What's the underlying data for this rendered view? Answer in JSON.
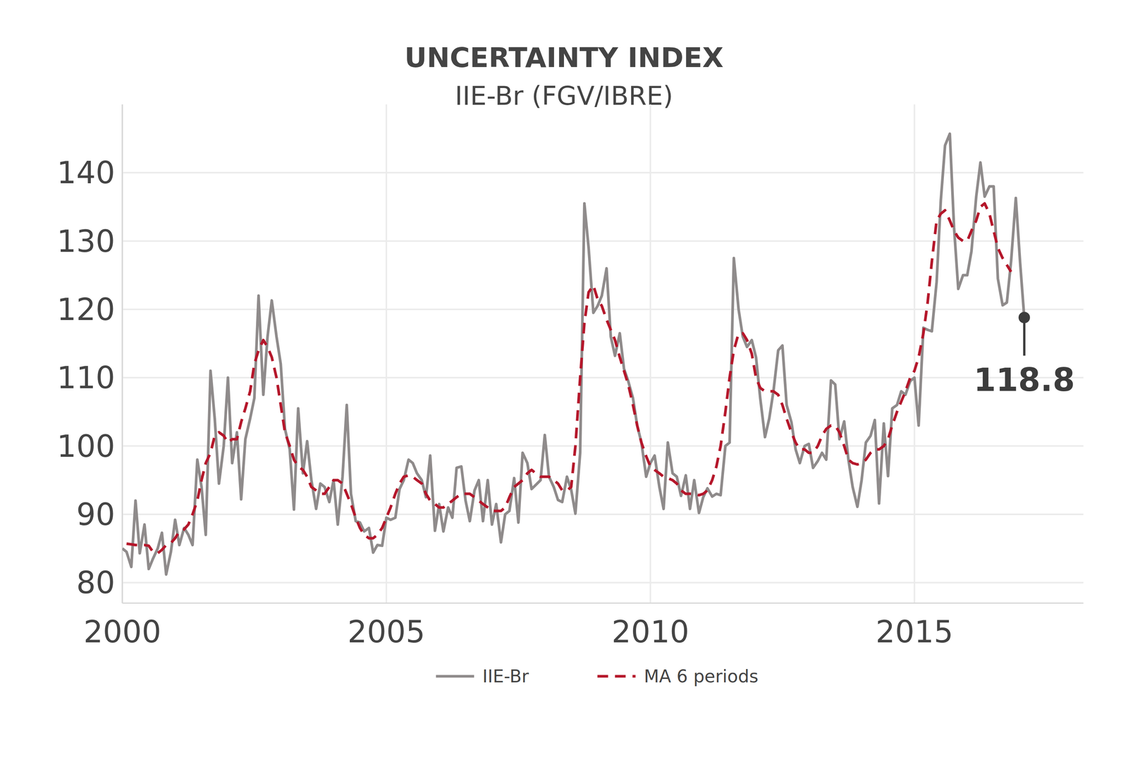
{
  "chart_data": {
    "type": "line",
    "title": "UNCERTAINTY INDEX",
    "subtitle": "IIE-Br (FGV/IBRE)",
    "x": [
      2000.0,
      2000.08,
      2000.17,
      2000.25,
      2000.33,
      2000.42,
      2000.5,
      2000.58,
      2000.67,
      2000.75,
      2000.83,
      2000.92,
      2001.0,
      2001.08,
      2001.17,
      2001.25,
      2001.33,
      2001.42,
      2001.5,
      2001.58,
      2001.67,
      2001.75,
      2001.83,
      2001.92,
      2002.0,
      2002.08,
      2002.17,
      2002.25,
      2002.33,
      2002.42,
      2002.5,
      2002.58,
      2002.67,
      2002.75,
      2002.83,
      2002.92,
      2003.0,
      2003.08,
      2003.17,
      2003.25,
      2003.33,
      2003.42,
      2003.5,
      2003.58,
      2003.67,
      2003.75,
      2003.83,
      2003.92,
      2004.0,
      2004.08,
      2004.17,
      2004.25,
      2004.33,
      2004.42,
      2004.5,
      2004.58,
      2004.67,
      2004.75,
      2004.83,
      2004.92,
      2005.0,
      2005.08,
      2005.17,
      2005.25,
      2005.33,
      2005.42,
      2005.5,
      2005.58,
      2005.67,
      2005.75,
      2005.83,
      2005.92,
      2006.0,
      2006.08,
      2006.17,
      2006.25,
      2006.33,
      2006.42,
      2006.5,
      2006.58,
      2006.67,
      2006.75,
      2006.83,
      2006.92,
      2007.0,
      2007.08,
      2007.17,
      2007.25,
      2007.33,
      2007.42,
      2007.5,
      2007.58,
      2007.67,
      2007.75,
      2007.83,
      2007.92,
      2008.0,
      2008.08,
      2008.17,
      2008.25,
      2008.33,
      2008.42,
      2008.5,
      2008.58,
      2008.67,
      2008.75,
      2008.83,
      2008.92,
      2009.0,
      2009.08,
      2009.17,
      2009.25,
      2009.33,
      2009.42,
      2009.5,
      2009.58,
      2009.67,
      2009.75,
      2009.83,
      2009.92,
      2010.0,
      2010.08,
      2010.17,
      2010.25,
      2010.33,
      2010.42,
      2010.5,
      2010.58,
      2010.67,
      2010.75,
      2010.83,
      2010.92,
      2011.0,
      2011.08,
      2011.17,
      2011.25,
      2011.33,
      2011.42,
      2011.5,
      2011.58,
      2011.67,
      2011.75,
      2011.83,
      2011.92,
      2012.0,
      2012.08,
      2012.17,
      2012.25,
      2012.33,
      2012.42,
      2012.5,
      2012.58,
      2012.67,
      2012.75,
      2012.83,
      2012.92,
      2013.0,
      2013.08,
      2013.17,
      2013.25,
      2013.33,
      2013.42,
      2013.5,
      2013.58,
      2013.67,
      2013.75,
      2013.83,
      2013.92,
      2014.0,
      2014.08,
      2014.17,
      2014.25,
      2014.33,
      2014.42,
      2014.5,
      2014.58,
      2014.67,
      2014.75,
      2014.83,
      2014.92,
      2015.0,
      2015.08,
      2015.17,
      2015.25,
      2015.33,
      2015.42,
      2015.5,
      2015.58,
      2015.67,
      2015.75,
      2015.83,
      2015.92,
      2016.0,
      2016.08,
      2016.17,
      2016.25,
      2016.33,
      2016.42,
      2016.5,
      2016.58,
      2016.67,
      2016.75,
      2016.83,
      2016.92,
      2017.0,
      2017.08
    ],
    "series": [
      {
        "name": "IIE-Br",
        "color": "#8f8b8b",
        "line_style": "solid",
        "values": [
          85,
          84.5,
          82.3,
          92,
          84.3,
          88.5,
          82,
          83.5,
          85,
          87.3,
          81.2,
          84.5,
          89.2,
          85.5,
          88,
          87,
          85.5,
          98,
          94,
          87,
          111,
          104,
          94.5,
          100,
          110,
          97.5,
          102,
          92.2,
          101,
          104,
          107,
          122,
          107.5,
          116,
          121.3,
          116,
          112,
          102.5,
          99.5,
          90.7,
          105.5,
          96,
          100.7,
          95,
          90.8,
          94.5,
          94,
          91.8,
          95,
          88.5,
          95.5,
          106,
          93,
          89,
          88.8,
          87.5,
          88,
          84.4,
          85.5,
          85.4,
          89.5,
          89.2,
          89.5,
          93.7,
          95,
          98,
          97.5,
          96,
          95,
          92.5,
          98.6,
          87.6,
          91.5,
          87.5,
          91,
          89.5,
          96.8,
          97,
          92,
          89,
          93.5,
          95,
          89,
          95,
          88.5,
          91.5,
          85.9,
          90,
          90.5,
          95.3,
          88.8,
          99,
          97.5,
          93.7,
          94.3,
          95,
          101.6,
          95.5,
          94,
          92.1,
          91.8,
          95.5,
          93.6,
          90.1,
          99,
          135.5,
          129,
          119.5,
          120.5,
          122,
          126,
          116,
          113.2,
          116.5,
          111.3,
          109.5,
          107,
          103,
          100.5,
          95.5,
          97.5,
          98.6,
          94,
          90.8,
          100.5,
          96,
          95.5,
          92.7,
          95.7,
          90.8,
          95,
          90.2,
          92.5,
          93.8,
          92.6,
          93,
          92.8,
          100,
          100.5,
          127.5,
          120,
          116,
          114.5,
          115.5,
          113,
          107,
          101.3,
          104,
          108,
          114,
          114.7,
          106,
          103.5,
          99.5,
          97.5,
          100,
          100.3,
          96.8,
          97.8,
          99,
          98,
          109.6,
          109,
          101,
          103.6,
          98,
          94,
          91.1,
          95,
          100.5,
          101.5,
          103.8,
          91.6,
          103.3,
          95.6,
          105.5,
          106,
          108,
          107.5,
          109.5,
          110,
          103,
          117.3,
          117,
          116.8,
          124,
          136,
          144,
          145.7,
          132,
          123,
          125,
          125,
          128.5,
          136.5,
          141.5,
          136.5,
          138,
          138,
          124.5,
          120.6,
          121,
          127,
          136.3,
          127,
          118.8
        ]
      },
      {
        "name": "MA 6 periods",
        "color": "#b5172b",
        "line_style": "dashed",
        "values": [
          null,
          85.7,
          85.6,
          85.5,
          85.5,
          85.5,
          85.4,
          84.5,
          84.3,
          84.8,
          85.5,
          85.8,
          86.5,
          87.5,
          87.8,
          88.5,
          90,
          92,
          95,
          97.5,
          99,
          101.5,
          102,
          101.5,
          100.5,
          101,
          101,
          103.5,
          105.5,
          108,
          112,
          114,
          115.5,
          114.5,
          113,
          110,
          106,
          102,
          100,
          98,
          97,
          96.5,
          95.5,
          94,
          93.5,
          93,
          93,
          94,
          95,
          95,
          94.5,
          93,
          91.5,
          89.5,
          88,
          87,
          86.5,
          86.5,
          87,
          88,
          89.5,
          91,
          93,
          94.5,
          95.5,
          95.7,
          95.5,
          95,
          94.5,
          93,
          92,
          91.5,
          91,
          91,
          91.5,
          92,
          92.5,
          93,
          93,
          93,
          92.5,
          92,
          91.5,
          91,
          90.5,
          90.5,
          90.5,
          91,
          92.5,
          94,
          94.5,
          95,
          96,
          96.5,
          96,
          95.5,
          95.5,
          95.5,
          95,
          94.5,
          93.5,
          93.5,
          94,
          100,
          110,
          118,
          122.5,
          123.5,
          121.5,
          120.5,
          118.5,
          117,
          115.5,
          113,
          111,
          109,
          106,
          103,
          100.5,
          98.5,
          97,
          96.5,
          96,
          95.5,
          95.3,
          95,
          94.5,
          93.5,
          93,
          93,
          93,
          92.8,
          93,
          93.5,
          95,
          97,
          100,
          105,
          110,
          114,
          116.5,
          116.5,
          115.5,
          113.5,
          110,
          108.5,
          108,
          108,
          108,
          107.5,
          106,
          104,
          102,
          100.5,
          99.5,
          99.5,
          99,
          99,
          100,
          101.5,
          102.5,
          103,
          103,
          102,
          100,
          98,
          97.5,
          97.3,
          97.5,
          98,
          99,
          99.5,
          99.5,
          100,
          101,
          103,
          105,
          106.5,
          108,
          110,
          111,
          113,
          116.5,
          121,
          127,
          133,
          134,
          134.5,
          133,
          131.5,
          130.5,
          130,
          130,
          131.5,
          133,
          135,
          135.5,
          134,
          131.5,
          129,
          127.5,
          126.5,
          125.5,
          null,
          null,
          null
        ]
      }
    ],
    "xlim": [
      2000,
      2018.2
    ],
    "xticks": [
      2000,
      2005,
      2010,
      2015
    ],
    "ylim": [
      77,
      150
    ],
    "yticks": [
      80,
      90,
      100,
      110,
      120,
      130,
      140
    ],
    "grid": true,
    "legend": "bottom",
    "annotation": {
      "text": "118.8",
      "x": 2017.08,
      "y": 118.8
    }
  }
}
